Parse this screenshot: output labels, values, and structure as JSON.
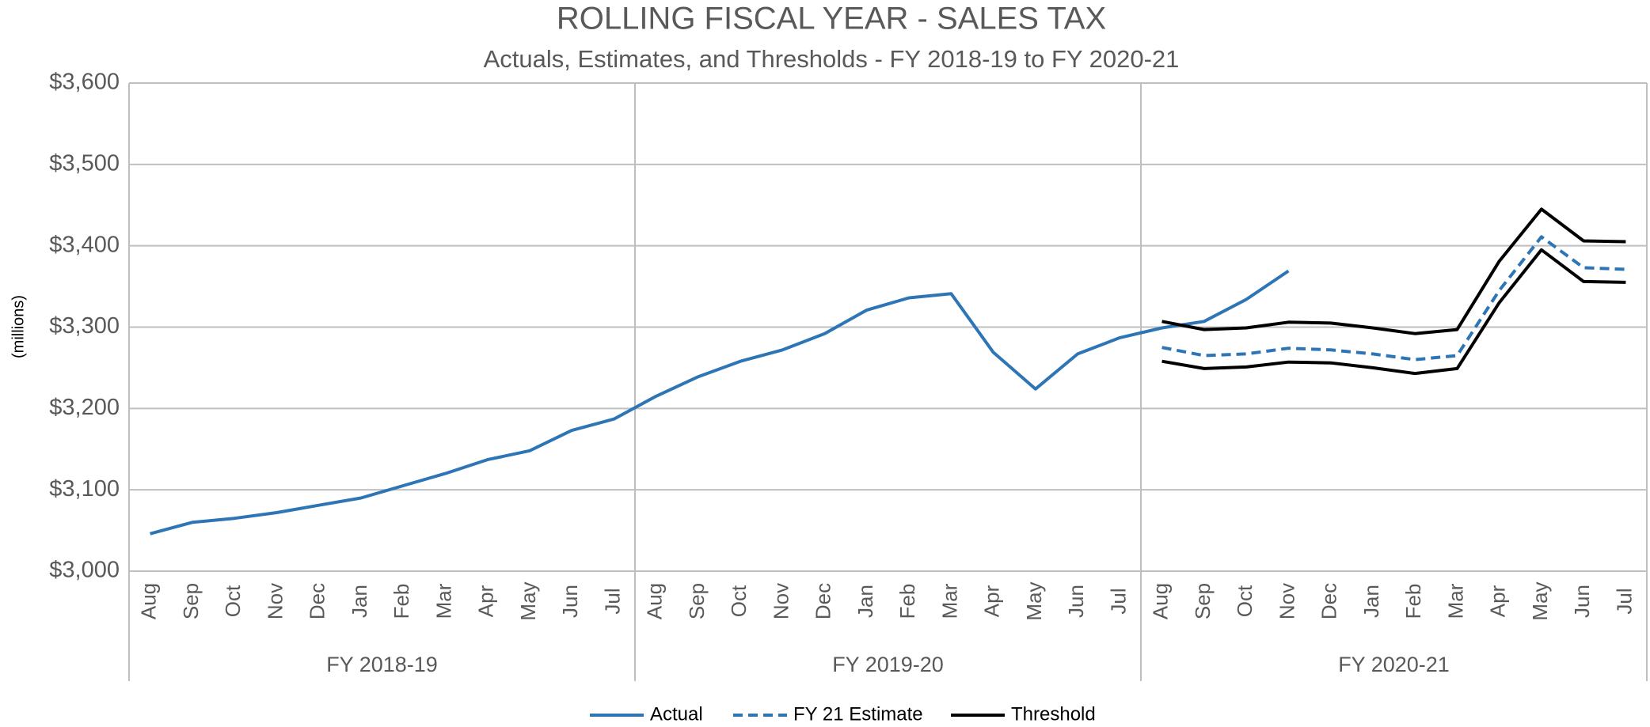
{
  "chart_data": {
    "type": "line",
    "title": "ROLLING FISCAL YEAR - SALES TAX",
    "subtitle": "Actuals, Estimates, and Thresholds - FY 2018-19 to FY 2020-21",
    "y_label": "(millions)",
    "categories": [
      "Aug",
      "Sep",
      "Oct",
      "Nov",
      "Dec",
      "Jan",
      "Feb",
      "Mar",
      "Apr",
      "May",
      "Jun",
      "Jul",
      "Aug",
      "Sep",
      "Oct",
      "Nov",
      "Dec",
      "Jan",
      "Feb",
      "Mar",
      "Apr",
      "May",
      "Jun",
      "Jul",
      "Aug",
      "Sep",
      "Oct",
      "Nov",
      "Dec",
      "Jan",
      "Feb",
      "Mar",
      "Apr",
      "May",
      "Jun",
      "Jul"
    ],
    "groups": [
      "FY 2018-19",
      "FY 2019-20",
      "FY 2020-21"
    ],
    "series": [
      {
        "name": "Actual",
        "color": "#2e75b6",
        "dash": false,
        "values": [
          3046,
          3060,
          3065,
          3072,
          3081,
          3090,
          3105,
          3120,
          3137,
          3148,
          3173,
          3187,
          3215,
          3239,
          3258,
          3272,
          3292,
          3321,
          3336,
          3341,
          3269,
          3224,
          3267,
          3287,
          3299,
          3307,
          3334,
          3369,
          null,
          null,
          null,
          null,
          null,
          null,
          null,
          null
        ]
      },
      {
        "name": "FY 21 Estimate",
        "color": "#2e75b6",
        "dash": true,
        "values": [
          null,
          null,
          null,
          null,
          null,
          null,
          null,
          null,
          null,
          null,
          null,
          null,
          null,
          null,
          null,
          null,
          null,
          null,
          null,
          null,
          null,
          null,
          null,
          null,
          3275,
          3265,
          3267,
          3274,
          3272,
          3267,
          3260,
          3265,
          3345,
          3411,
          3373,
          3371
        ]
      },
      {
        "name": "Threshold",
        "color": "#000000",
        "dash": false,
        "values": [
          null,
          null,
          null,
          null,
          null,
          null,
          null,
          null,
          null,
          null,
          null,
          null,
          null,
          null,
          null,
          null,
          null,
          null,
          null,
          null,
          null,
          null,
          null,
          null,
          3307,
          3297,
          3299,
          3306,
          3305,
          3299,
          3292,
          3297,
          3381,
          3445,
          3406,
          3405
        ]
      },
      {
        "color": "#000000",
        "dash": false,
        "values": [
          null,
          null,
          null,
          null,
          null,
          null,
          null,
          null,
          null,
          null,
          null,
          null,
          null,
          null,
          null,
          null,
          null,
          null,
          null,
          null,
          null,
          null,
          null,
          null,
          3258,
          3249,
          3251,
          3257,
          3256,
          3250,
          3243,
          3249,
          3330,
          3395,
          3356,
          3355
        ]
      }
    ],
    "ylim": [
      3000,
      3600
    ],
    "yticks": [
      {
        "value": 3000,
        "label": "$3,000"
      },
      {
        "value": 3100,
        "label": "$3,100"
      },
      {
        "value": 3200,
        "label": "$3,200"
      },
      {
        "value": 3300,
        "label": "$3,300"
      },
      {
        "value": 3400,
        "label": "$3,400"
      },
      {
        "value": 3500,
        "label": "$3,500"
      },
      {
        "value": 3600,
        "label": "$3,600"
      }
    ],
    "grid": true,
    "legend": "bottom"
  }
}
